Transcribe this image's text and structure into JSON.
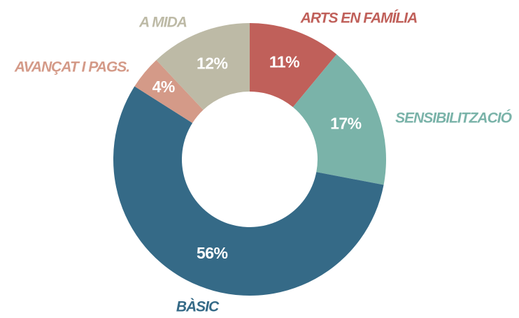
{
  "chart_data": {
    "type": "donut",
    "categories": [
      "ARTS EN FAMÍLIA",
      "SENSIBILITZACIÓ",
      "BÀSIC",
      "AVANÇAT I PAGS.",
      "A MIDA"
    ],
    "values": [
      11,
      17,
      56,
      4,
      12
    ],
    "value_labels": [
      "11%",
      "17%",
      "56%",
      "4%",
      "12%"
    ],
    "colors": [
      "#c0605a",
      "#7ab3a9",
      "#356a87",
      "#d49a88",
      "#bdbaa6"
    ]
  }
}
